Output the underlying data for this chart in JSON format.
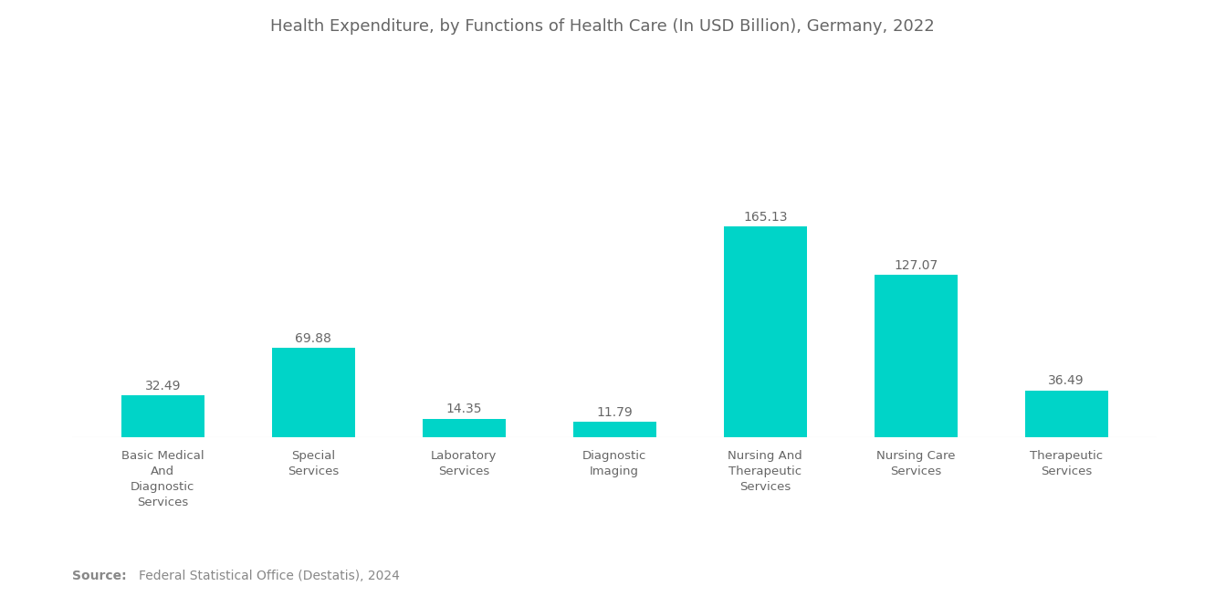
{
  "title": "Health Expenditure, by Functions of Health Care (In USD Billion), Germany, 2022",
  "categories": [
    "Basic Medical\nAnd\nDiagnostic\nServices",
    "Special\nServices",
    "Laboratory\nServices",
    "Diagnostic\nImaging",
    "Nursing And\nTherapeutic\nServices",
    "Nursing Care\nServices",
    "Therapeutic\nServices"
  ],
  "values": [
    32.49,
    69.88,
    14.35,
    11.79,
    165.13,
    127.07,
    36.49
  ],
  "bar_color": "#00D4C8",
  "background_color": "#ffffff",
  "title_color": "#666666",
  "label_color": "#666666",
  "value_color": "#666666",
  "source_bold": "Source:",
  "source_text": "Federal Statistical Office (Destatis), 2024",
  "ylim": [
    0,
    200
  ],
  "title_fontsize": 13,
  "label_fontsize": 9.5,
  "value_fontsize": 10,
  "source_fontsize": 10,
  "bar_width": 0.55
}
